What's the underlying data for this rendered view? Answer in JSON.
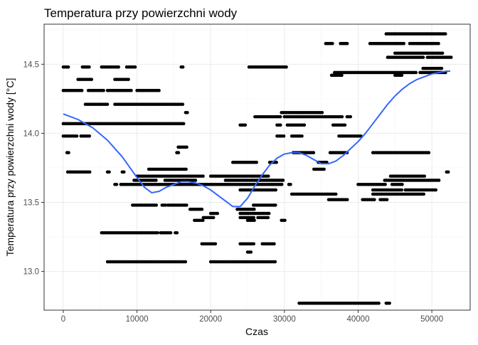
{
  "chart_data": {
    "type": "scatter",
    "title": "Temperatura przy powierzchni wody",
    "xlabel": "Czas",
    "ylabel": "Temperatura przy powierzchni wody [°C]",
    "xlim": [
      -2600,
      55200
    ],
    "ylim": [
      12.72,
      14.79
    ],
    "x_ticks": [
      0,
      10000,
      20000,
      30000,
      40000,
      50000
    ],
    "x_tick_labels": [
      "0",
      "10000",
      "20000",
      "30000",
      "40000",
      "50000"
    ],
    "y_ticks": [
      13.0,
      13.5,
      14.0,
      14.5
    ],
    "y_tick_labels": [
      "13.0",
      "13.5",
      "14.0",
      "14.5"
    ],
    "grid": true,
    "point_color": "#000000",
    "smooth_color": "#3366ff",
    "panel_border_color": "#333333",
    "grid_major_color": "#ebebeb",
    "grid_minor_color": "#f5f5f5",
    "point_clusters": [
      {
        "y": 14.48,
        "segments": [
          [
            0,
            800
          ],
          [
            2600,
            3600
          ],
          [
            5200,
            7600
          ],
          [
            8600,
            9800
          ],
          [
            16000,
            16400
          ],
          [
            25200,
            30400
          ]
        ]
      },
      {
        "y": 14.39,
        "segments": [
          [
            2000,
            4000
          ],
          [
            7000,
            9000
          ]
        ]
      },
      {
        "y": 14.31,
        "segments": [
          [
            0,
            2600
          ],
          [
            3400,
            5600
          ],
          [
            6000,
            9400
          ],
          [
            10000,
            13000
          ]
        ]
      },
      {
        "y": 14.21,
        "segments": [
          [
            3000,
            6000
          ],
          [
            7000,
            16400
          ]
        ]
      },
      {
        "y": 14.15,
        "segments": [
          [
            16600,
            17000
          ],
          [
            29600,
            35200
          ]
        ]
      },
      {
        "y": 14.12,
        "segments": [
          [
            26000,
            29600
          ],
          [
            30000,
            38000
          ],
          [
            38500,
            39000
          ]
        ]
      },
      {
        "y": 14.07,
        "segments": [
          [
            0,
            16400
          ]
        ]
      },
      {
        "y": 14.06,
        "segments": [
          [
            24000,
            24800
          ],
          [
            29000,
            29600
          ],
          [
            30400,
            32800
          ],
          [
            36600,
            38400
          ]
        ]
      },
      {
        "y": 13.98,
        "segments": [
          [
            0,
            2000
          ],
          [
            2400,
            3600
          ],
          [
            29000,
            30000
          ],
          [
            31000,
            32600
          ],
          [
            37400,
            40400
          ]
        ]
      },
      {
        "y": 13.9,
        "segments": [
          [
            15600,
            16800
          ]
        ]
      },
      {
        "y": 13.86,
        "segments": [
          [
            500,
            800
          ],
          [
            15400,
            15800
          ],
          [
            31200,
            34000
          ],
          [
            36200,
            38600
          ],
          [
            42000,
            49800
          ]
        ]
      },
      {
        "y": 13.79,
        "segments": [
          [
            23000,
            26400
          ],
          [
            28000,
            29000
          ],
          [
            34600,
            35800
          ]
        ]
      },
      {
        "y": 13.74,
        "segments": [
          [
            11600,
            16800
          ],
          [
            34000,
            35600
          ]
        ]
      },
      {
        "y": 13.72,
        "segments": [
          [
            600,
            3600
          ],
          [
            6000,
            6400
          ],
          [
            8000,
            8400
          ],
          [
            52000,
            52400
          ]
        ]
      },
      {
        "y": 13.69,
        "segments": [
          [
            10000,
            19000
          ],
          [
            20000,
            28000
          ],
          [
            44400,
            49000
          ]
        ]
      },
      {
        "y": 13.66,
        "segments": [
          [
            9600,
            12600
          ],
          [
            13800,
            18000
          ],
          [
            22000,
            30000
          ],
          [
            43600,
            51000
          ]
        ]
      },
      {
        "y": 13.63,
        "segments": [
          [
            7000,
            7400
          ],
          [
            7800,
            29800
          ],
          [
            30600,
            31000
          ],
          [
            40000,
            43800
          ],
          [
            44600,
            46000
          ]
        ]
      },
      {
        "y": 13.59,
        "segments": [
          [
            24000,
            29000
          ],
          [
            42000,
            46000
          ],
          [
            46400,
            50600
          ]
        ]
      },
      {
        "y": 13.56,
        "segments": [
          [
            31000,
            37000
          ],
          [
            42000,
            49000
          ]
        ]
      },
      {
        "y": 13.52,
        "segments": [
          [
            36000,
            38600
          ],
          [
            40600,
            42400
          ],
          [
            43000,
            44000
          ]
        ]
      },
      {
        "y": 13.48,
        "segments": [
          [
            9400,
            12800
          ],
          [
            13400,
            14000
          ],
          [
            14200,
            16800
          ],
          [
            25800,
            28800
          ]
        ]
      },
      {
        "y": 13.45,
        "segments": [
          [
            17200,
            19000
          ],
          [
            23600,
            26000
          ]
        ]
      },
      {
        "y": 13.42,
        "segments": [
          [
            20000,
            21000
          ],
          [
            24000,
            28000
          ]
        ]
      },
      {
        "y": 13.39,
        "segments": [
          [
            19000,
            20400
          ],
          [
            24000,
            26000
          ],
          [
            26400,
            28000
          ]
        ]
      },
      {
        "y": 13.37,
        "segments": [
          [
            17800,
            19000
          ],
          [
            25000,
            26000
          ],
          [
            29600,
            30200
          ]
        ]
      },
      {
        "y": 13.28,
        "segments": [
          [
            5200,
            12800
          ],
          [
            13200,
            14800
          ],
          [
            15200,
            15600
          ]
        ]
      },
      {
        "y": 13.2,
        "segments": [
          [
            18800,
            20800
          ],
          [
            24000,
            26000
          ],
          [
            27000,
            28800
          ]
        ]
      },
      {
        "y": 13.14,
        "segments": [
          [
            25000,
            25600
          ]
        ]
      },
      {
        "y": 13.07,
        "segments": [
          [
            6000,
            16800
          ],
          [
            20000,
            28800
          ]
        ]
      },
      {
        "y": 12.77,
        "segments": [
          [
            32000,
            43000
          ],
          [
            43800,
            44400
          ]
        ]
      },
      {
        "y": 14.72,
        "segments": [
          [
            43800,
            52000
          ]
        ]
      },
      {
        "y": 14.65,
        "segments": [
          [
            35600,
            36600
          ],
          [
            37600,
            38600
          ],
          [
            41600,
            46400
          ],
          [
            47000,
            51000
          ]
        ]
      },
      {
        "y": 14.58,
        "segments": [
          [
            45000,
            51600
          ]
        ]
      },
      {
        "y": 14.55,
        "segments": [
          [
            44000,
            49000
          ],
          [
            49400,
            52800
          ]
        ]
      },
      {
        "y": 14.47,
        "segments": [
          [
            48800,
            51400
          ]
        ]
      },
      {
        "y": 14.44,
        "segments": [
          [
            36800,
            48000
          ],
          [
            48400,
            52000
          ]
        ]
      },
      {
        "y": 14.42,
        "segments": [
          [
            36400,
            38000
          ],
          [
            45000,
            46000
          ]
        ]
      }
    ],
    "smooth": {
      "x": [
        0,
        2000,
        4000,
        6000,
        8000,
        10000,
        11000,
        12000,
        13000,
        14000,
        15000,
        16000,
        17000,
        18000,
        19000,
        20000,
        21000,
        22000,
        23000,
        24000,
        25000,
        26000,
        27000,
        28000,
        29000,
        30000,
        31000,
        32000,
        33000,
        34000,
        35000,
        36000,
        37000,
        38000,
        39000,
        40000,
        41000,
        42000,
        43000,
        44000,
        45000,
        46000,
        47000,
        48000,
        49000,
        50000,
        51000,
        52000,
        52500
      ],
      "y": [
        14.14,
        14.1,
        14.04,
        13.95,
        13.83,
        13.68,
        13.61,
        13.57,
        13.58,
        13.61,
        13.63,
        13.65,
        13.65,
        13.64,
        13.62,
        13.59,
        13.55,
        13.51,
        13.47,
        13.47,
        13.53,
        13.62,
        13.7,
        13.77,
        13.82,
        13.85,
        13.86,
        13.86,
        13.84,
        13.81,
        13.78,
        13.78,
        13.8,
        13.84,
        13.89,
        13.94,
        14.0,
        14.07,
        14.14,
        14.21,
        14.27,
        14.32,
        14.36,
        14.39,
        14.41,
        14.43,
        14.44,
        14.45,
        14.45
      ]
    }
  }
}
